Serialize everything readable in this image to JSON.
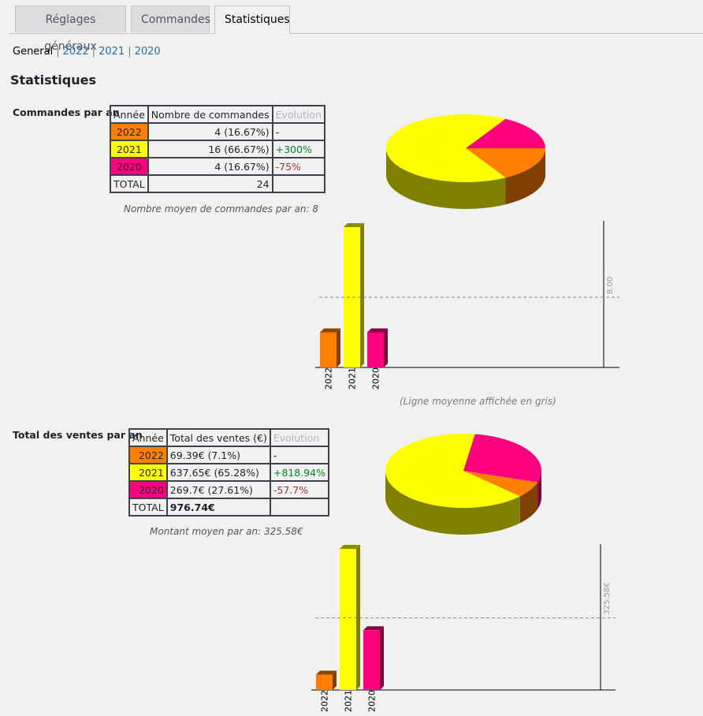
{
  "tabs": [
    {
      "label": "Réglages généraux"
    },
    {
      "label": "Commandes"
    },
    {
      "label": "Statistiques"
    }
  ],
  "subnav": {
    "general": "General",
    "y2022": "2022",
    "y2021": "2021",
    "y2020": "2020"
  },
  "page_title": "Statistiques",
  "colors": {
    "y2022": "#ff8000",
    "y2021": "#ffff00",
    "y2020": "#ff0080"
  },
  "orders": {
    "label": "Commandes par an",
    "headers": {
      "year": "Année",
      "count": "Nombre de commandes",
      "evolution": "Evolution"
    },
    "rows": [
      {
        "year": "2022",
        "value": "4 (16.67%)",
        "evolution": "-"
      },
      {
        "year": "2021",
        "value": "16 (66.67%)",
        "evolution": "+300%"
      },
      {
        "year": "2020",
        "value": "4 (16.67%)",
        "evolution": "-75%"
      }
    ],
    "total_label": "TOTAL",
    "total_value": "24",
    "average_note": "Nombre moyen de commandes par an: 8",
    "bar_average_label": "8.00",
    "legend_note": "(Ligne moyenne affichée en gris)"
  },
  "sales": {
    "label": "Total des ventes par an",
    "headers": {
      "year": "Année",
      "total": "Total des ventes (€)",
      "evolution": "Evolution"
    },
    "rows": [
      {
        "year": "2022",
        "value": "69.39€ (7.1%)",
        "evolution": "-"
      },
      {
        "year": "2021",
        "value": "637.65€ (65.28%)",
        "evolution": "+818.94%"
      },
      {
        "year": "2020",
        "value": "269.7€ (27.61%)",
        "evolution": "-57.7%"
      }
    ],
    "total_label": "TOTAL",
    "total_value": "976.74€",
    "average_note": "Montant moyen par an: 325.58€",
    "bar_average_label": "325.58€"
  },
  "chart_data": [
    {
      "type": "pie",
      "title": "Commandes par an",
      "categories": [
        "2022",
        "2021",
        "2020"
      ],
      "values": [
        4,
        16,
        4
      ],
      "colors": [
        "#ff8000",
        "#ffff00",
        "#ff0080"
      ]
    },
    {
      "type": "bar",
      "title": "Commandes par an",
      "categories": [
        "2022",
        "2021",
        "2020"
      ],
      "values": [
        4,
        16,
        4
      ],
      "average": 8,
      "ylim": [
        0,
        16
      ],
      "colors": [
        "#ff8000",
        "#ffff00",
        "#ff0080"
      ]
    },
    {
      "type": "pie",
      "title": "Total des ventes par an",
      "categories": [
        "2022",
        "2021",
        "2020"
      ],
      "values": [
        69.39,
        637.65,
        269.7
      ],
      "colors": [
        "#ff8000",
        "#ffff00",
        "#ff0080"
      ]
    },
    {
      "type": "bar",
      "title": "Total des ventes par an",
      "categories": [
        "2022",
        "2021",
        "2020"
      ],
      "values": [
        69.39,
        637.65,
        269.7
      ],
      "average": 325.58,
      "ylim": [
        0,
        637.65
      ],
      "colors": [
        "#ff8000",
        "#ffff00",
        "#ff0080"
      ]
    }
  ]
}
